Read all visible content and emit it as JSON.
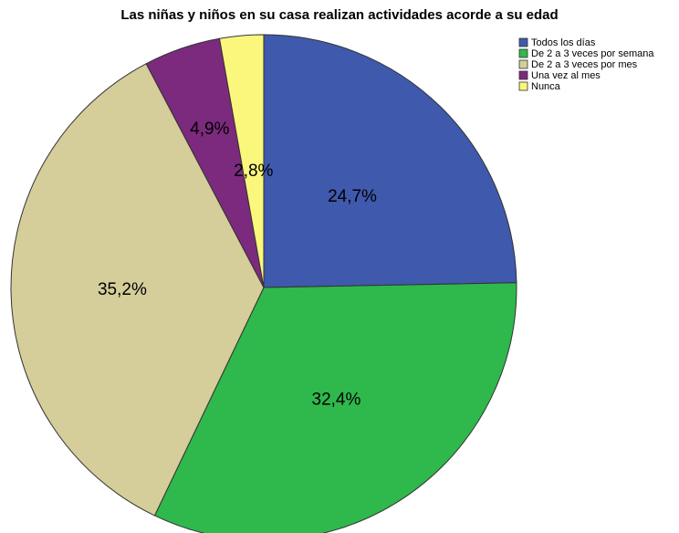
{
  "chart_data": {
    "type": "pie",
    "title": "Las niñas y niños en su casa realizan actividades acorde a su edad",
    "categories": [
      "Todos los días",
      "De 2 a 3 veces por semana",
      "De 2 a 3 veces por mes",
      "Una vez al mes",
      "Nunca"
    ],
    "values": [
      24.7,
      32.4,
      35.2,
      4.9,
      2.8
    ],
    "value_labels": [
      "24,7%",
      "32,4%",
      "35,2%",
      "4,9%",
      "2,8%"
    ],
    "colors": [
      "#3f59ad",
      "#2fb84b",
      "#d5cd9a",
      "#7b2a7d",
      "#fbf77c"
    ],
    "legend": "upper right"
  }
}
